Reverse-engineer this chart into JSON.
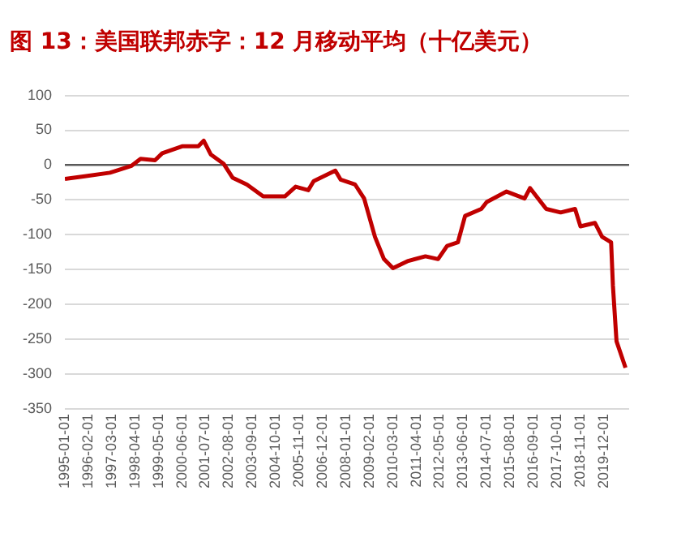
{
  "chart_data": {
    "type": "line",
    "title": "图 13：美国联邦赤字：12 月移动平均（十亿美元）",
    "x": [
      "1995-01-01",
      "1995-12-01",
      "1997-02-01",
      "1998-02-01",
      "1998-07-01",
      "1999-03-01",
      "1999-07-01",
      "2000-06-01",
      "2001-03-01",
      "2001-06-01",
      "2001-10-01",
      "2002-05-01",
      "2002-10-01",
      "2003-06-01",
      "2004-03-01",
      "2005-03-01",
      "2005-09-01",
      "2006-04-01",
      "2006-07-01",
      "2007-07-01",
      "2007-10-01",
      "2008-06-01",
      "2008-11-01",
      "2009-05-01",
      "2009-10-01",
      "2010-03-01",
      "2010-11-01",
      "2011-09-01",
      "2012-04-01",
      "2012-09-01",
      "2013-03-01",
      "2013-07-01",
      "2014-04-01",
      "2014-07-01",
      "2015-06-01",
      "2016-04-01",
      "2016-07-01",
      "2017-04-01",
      "2017-12-01",
      "2018-08-01",
      "2018-11-01",
      "2019-07-01",
      "2019-11-01",
      "2020-04-01",
      "2020-05-01",
      "2020-07-01",
      "2020-12-01"
    ],
    "series": [
      {
        "color": "#c00000",
        "values": [
          -20,
          -16,
          -11,
          -1,
          9,
          7,
          17,
          27,
          27,
          35,
          15,
          2,
          -18,
          -28,
          -45,
          -45,
          -31,
          -36,
          -23,
          -8,
          -21,
          -28,
          -48,
          -103,
          -135,
          -148,
          -138,
          -131,
          -135,
          -116,
          -111,
          -73,
          -63,
          -53,
          -38,
          -48,
          -33,
          -63,
          -68,
          -63,
          -88,
          -83,
          -103,
          -111,
          -173,
          -253,
          -291
        ]
      }
    ],
    "xlim": [
      "1995-01-01",
      "2021-02-01"
    ],
    "xticks": [
      "1995-01-01",
      "1996-02-01",
      "1997-03-01",
      "1998-04-01",
      "1999-05-01",
      "2000-06-01",
      "2001-07-01",
      "2002-08-01",
      "2003-09-01",
      "2004-10-01",
      "2005-11-01",
      "2006-12-01",
      "2008-01-01",
      "2009-02-01",
      "2010-03-01",
      "2011-04-01",
      "2012-05-01",
      "2013-06-01",
      "2014-07-01",
      "2015-08-01",
      "2016-09-01",
      "2017-10-01",
      "2018-11-01",
      "2019-12-01"
    ],
    "ylim": [
      -350,
      100
    ],
    "yticks": [
      -350,
      -300,
      -250,
      -200,
      -150,
      -100,
      -50,
      0,
      50,
      100
    ],
    "grid": "y",
    "legend": false,
    "marker": "none",
    "line_style": "solid"
  }
}
